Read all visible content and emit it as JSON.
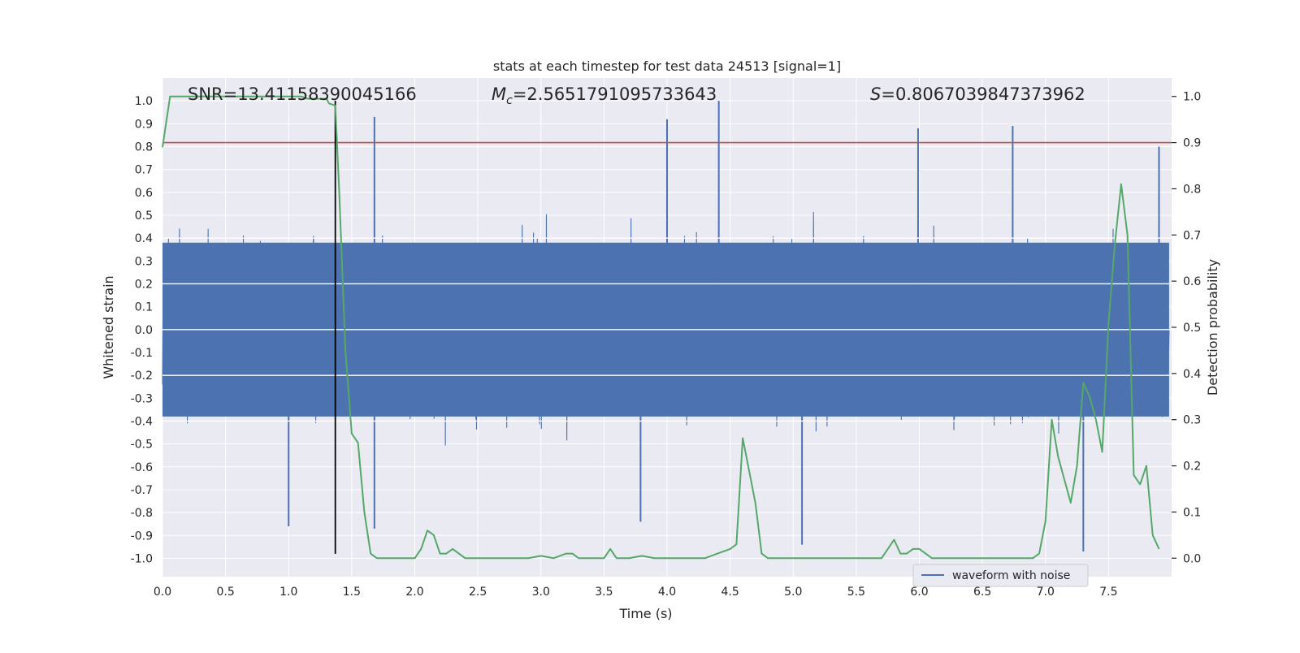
{
  "chart_data": {
    "type": "line",
    "title": "stats at each timestep for test data 24513 [signal=1]",
    "xlabel": "Time (s)",
    "ylabel_left": "Whitened strain",
    "ylabel_right": "Detection probability",
    "xlim": [
      0.0,
      8.0
    ],
    "ylim_left": [
      -1.08,
      1.1
    ],
    "ylim_right": [
      -0.04,
      1.04
    ],
    "x_ticks": [
      0.0,
      0.5,
      1.0,
      1.5,
      2.0,
      2.5,
      3.0,
      3.5,
      4.0,
      4.5,
      5.0,
      5.5,
      6.0,
      6.5,
      7.0,
      7.5
    ],
    "x_tick_labels": [
      "0.0",
      "0.5",
      "1.0",
      "1.5",
      "2.0",
      "2.5",
      "3.0",
      "3.5",
      "4.0",
      "4.5",
      "5.0",
      "5.5",
      "6.0",
      "6.5",
      "7.0",
      "7.5"
    ],
    "y_left_ticks": [
      1.0,
      0.9,
      0.8,
      0.7,
      0.6,
      0.5,
      0.4,
      0.3,
      0.2,
      0.1,
      0.0,
      -0.1,
      -0.2,
      -0.3,
      -0.4,
      -0.5,
      -0.6,
      -0.7,
      -0.8,
      -0.9,
      -1.0
    ],
    "y_left_tick_labels": [
      "1.0",
      "0.9",
      "0.8",
      "0.7",
      "0.6",
      "0.5",
      "0.4",
      "0.3",
      "0.2",
      "0.1",
      "0.0",
      "-0.1",
      "-0.2",
      "-0.3",
      "-0.4",
      "-0.5",
      "-0.6",
      "-0.7",
      "-0.8",
      "-0.9",
      "-1.0"
    ],
    "y_right_ticks": [
      1.0,
      0.9,
      0.8,
      0.7,
      0.6,
      0.5,
      0.4,
      0.3,
      0.2,
      0.1,
      0.0
    ],
    "y_right_tick_labels": [
      "1.0",
      "0.9",
      "0.8",
      "0.7",
      "0.6",
      "0.5",
      "0.4",
      "0.3",
      "0.2",
      "0.1",
      "0.0"
    ],
    "annotations": {
      "snr": "SNR=13.41158390045166",
      "mc_prefix": "M",
      "mc_sub": "c",
      "mc_value": "=2.5651791095733643",
      "s_prefix": "S",
      "s_value": "=0.8067039847373962"
    },
    "threshold": {
      "axis": "right",
      "value": 0.9,
      "color": "#c44e52"
    },
    "event_marker": {
      "x": 1.37,
      "y_range": [
        -0.98,
        1.0
      ],
      "color": "#000000"
    },
    "legend": {
      "entries": [
        "waveform with noise"
      ],
      "placement": "lower-right"
    },
    "series": [
      {
        "name": "waveform with noise",
        "axis": "left",
        "color": "#4c72b0",
        "description": "dense whitened strain noise, envelope approx +/-0.45 with spikes",
        "notable_peaks": [
          {
            "x": 1.68,
            "y": 0.93
          },
          {
            "x": 4.0,
            "y": 0.92
          },
          {
            "x": 4.41,
            "y": 1.0
          },
          {
            "x": 5.99,
            "y": 0.88
          },
          {
            "x": 6.74,
            "y": 0.89
          },
          {
            "x": 7.9,
            "y": 0.8
          }
        ],
        "notable_troughs": [
          {
            "x": 1.68,
            "y": -0.87
          },
          {
            "x": 1.0,
            "y": -0.86
          },
          {
            "x": 3.79,
            "y": -0.84
          },
          {
            "x": 5.07,
            "y": -0.94
          },
          {
            "x": 7.3,
            "y": -0.97
          }
        ]
      },
      {
        "name": "detection probability",
        "axis": "right",
        "color": "#55a868",
        "x": [
          0.0,
          0.06,
          0.1,
          0.2,
          0.3,
          0.4,
          0.5,
          0.6,
          0.7,
          0.8,
          0.9,
          1.0,
          1.1,
          1.15,
          1.2,
          1.3,
          1.32,
          1.37,
          1.4,
          1.45,
          1.5,
          1.55,
          1.6,
          1.65,
          1.7,
          1.75,
          1.8,
          1.9,
          2.0,
          2.05,
          2.1,
          2.15,
          2.2,
          2.25,
          2.3,
          2.35,
          2.4,
          2.5,
          2.6,
          2.7,
          2.8,
          2.9,
          3.0,
          3.1,
          3.2,
          3.25,
          3.3,
          3.4,
          3.5,
          3.55,
          3.6,
          3.7,
          3.8,
          3.9,
          4.0,
          4.1,
          4.2,
          4.3,
          4.4,
          4.5,
          4.55,
          4.6,
          4.7,
          4.75,
          4.8,
          4.9,
          5.0,
          5.1,
          5.2,
          5.3,
          5.4,
          5.5,
          5.6,
          5.7,
          5.8,
          5.85,
          5.9,
          5.95,
          6.0,
          6.05,
          6.1,
          6.2,
          6.3,
          6.4,
          6.5,
          6.6,
          6.7,
          6.8,
          6.9,
          6.95,
          7.0,
          7.05,
          7.1,
          7.2,
          7.25,
          7.3,
          7.35,
          7.4,
          7.45,
          7.5,
          7.55,
          7.6,
          7.65,
          7.7,
          7.75,
          7.8,
          7.85,
          7.9
        ],
        "values": [
          0.89,
          1.0,
          1.0,
          1.0,
          1.0,
          1.0,
          1.0,
          1.0,
          1.0,
          1.0,
          1.0,
          1.0,
          1.0,
          0.995,
          0.995,
          0.995,
          0.985,
          0.98,
          0.8,
          0.45,
          0.27,
          0.25,
          0.1,
          0.01,
          0.0,
          0.0,
          0.0,
          0.0,
          0.0,
          0.02,
          0.06,
          0.05,
          0.01,
          0.01,
          0.02,
          0.01,
          0.0,
          0.0,
          0.0,
          0.0,
          0.0,
          0.0,
          0.005,
          0.0,
          0.01,
          0.01,
          0.0,
          0.0,
          0.0,
          0.02,
          0.0,
          0.0,
          0.005,
          0.0,
          0.0,
          0.0,
          0.0,
          0.0,
          0.01,
          0.02,
          0.03,
          0.26,
          0.12,
          0.01,
          0.0,
          0.0,
          0.0,
          0.0,
          0.0,
          0.0,
          0.0,
          0.0,
          0.0,
          0.0,
          0.04,
          0.01,
          0.01,
          0.02,
          0.02,
          0.01,
          0.0,
          0.0,
          0.0,
          0.0,
          0.0,
          0.0,
          0.0,
          0.0,
          0.0,
          0.01,
          0.08,
          0.3,
          0.22,
          0.12,
          0.2,
          0.38,
          0.35,
          0.3,
          0.23,
          0.51,
          0.68,
          0.81,
          0.7,
          0.18,
          0.16,
          0.2,
          0.05,
          0.02
        ]
      }
    ]
  }
}
